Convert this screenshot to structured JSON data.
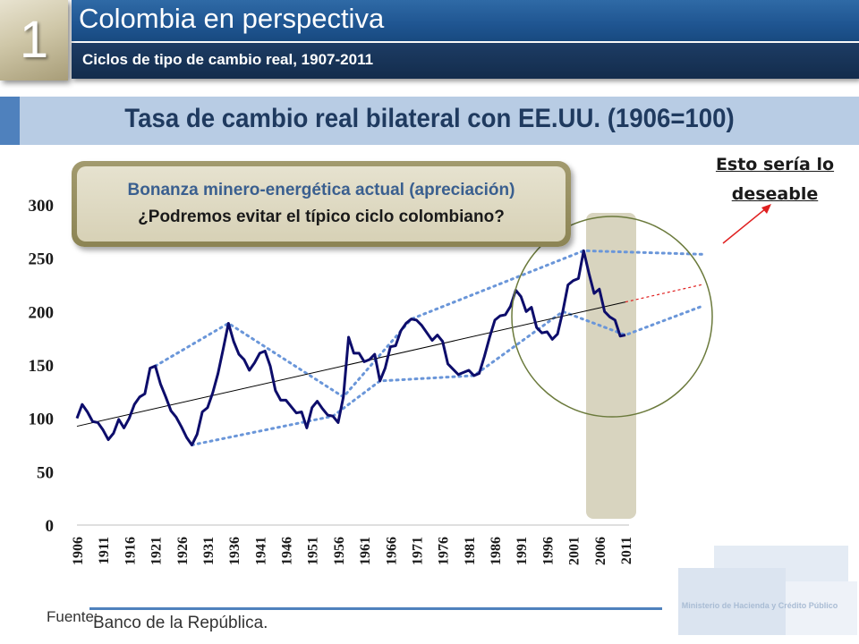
{
  "header": {
    "section_number": "1",
    "title": "Colombia en perspectiva",
    "subtitle": "Ciclos de tipo de cambio real, 1907-2011"
  },
  "band_title": "Tasa de cambio real bilateral con EE.UU. (1906=100)",
  "callout": {
    "line1": "Bonanza minero-energética actual (apreciación)",
    "line2": "¿Podremos evitar el típico ciclo colombiano?"
  },
  "annotation": "Esto sería lo deseable",
  "footer": {
    "label": "Fuente:",
    "source": "Banco de la República.",
    "ministry": "Ministerio de Hacienda y Crédito Público"
  },
  "colors": {
    "series": "#0d0d6b",
    "trend": "#000000",
    "envelope": "#6a96d9",
    "highlight_band": "#d8d4bf",
    "circle": "#6b7a3c",
    "arrow": "#e02020",
    "header_blue": "#1f5591",
    "band": "#b8cce4"
  },
  "chart_data": {
    "type": "line",
    "title": "Tasa de cambio real bilateral con EE.UU. (1906=100)",
    "xlabel": "",
    "ylabel": "",
    "ylim": [
      0,
      300
    ],
    "yticks": [
      0,
      50,
      100,
      150,
      200,
      250,
      300
    ],
    "xticks": [
      "1906",
      "1911",
      "1916",
      "1921",
      "1926",
      "1931",
      "1936",
      "1941",
      "1946",
      "1951",
      "1956",
      "1961",
      "1966",
      "1971",
      "1976",
      "1981",
      "1986",
      "1991",
      "1996",
      "2001",
      "2006",
      "2011"
    ],
    "grid": false,
    "series": [
      {
        "x": [
          1906,
          1907,
          1908,
          1909,
          1910,
          1911,
          1912,
          1913,
          1914,
          1915,
          1916,
          1917,
          1918,
          1919,
          1920,
          1921,
          1922,
          1923,
          1924,
          1925,
          1926,
          1927,
          1928,
          1929,
          1930,
          1931,
          1932,
          1933,
          1934,
          1935,
          1936,
          1937,
          1938,
          1939,
          1940,
          1941,
          1942,
          1943,
          1944,
          1945,
          1946,
          1947,
          1948,
          1949,
          1950,
          1951,
          1952,
          1953,
          1954,
          1955,
          1956,
          1957,
          1958,
          1959,
          1960,
          1961,
          1962,
          1963,
          1964,
          1965,
          1966,
          1967,
          1968,
          1969,
          1970,
          1971,
          1972,
          1973,
          1974,
          1975,
          1976,
          1977,
          1978,
          1979,
          1980,
          1981,
          1982,
          1983,
          1984,
          1985,
          1986,
          1987,
          1988,
          1989,
          1990,
          1991,
          1992,
          1993,
          1994,
          1995,
          1996,
          1997,
          1998,
          1999,
          2000,
          2001,
          2002,
          2003,
          2004,
          2005,
          2006,
          2007,
          2008,
          2009,
          2010,
          2011
        ],
        "values": [
          100,
          113,
          106,
          97,
          96,
          89,
          80,
          86,
          99,
          91,
          100,
          113,
          120,
          123,
          147,
          149,
          132,
          120,
          107,
          101,
          92,
          82,
          75,
          85,
          106,
          110,
          124,
          142,
          165,
          189,
          172,
          160,
          155,
          145,
          152,
          161,
          163,
          149,
          126,
          117,
          117,
          111,
          105,
          106,
          91,
          110,
          116,
          109,
          103,
          102,
          96,
          120,
          176,
          161,
          161,
          153,
          155,
          160,
          135,
          147,
          167,
          168,
          182,
          189,
          193,
          192,
          187,
          180,
          173,
          178,
          172,
          151,
          146,
          141,
          143,
          145,
          140,
          142,
          158,
          176,
          192,
          196,
          197,
          205,
          220,
          214,
          200,
          204,
          185,
          180,
          181,
          174,
          179,
          200,
          225,
          229,
          231,
          257,
          236,
          217,
          221,
          200,
          195,
          192,
          177,
          178
        ]
      }
    ],
    "annotations": [
      "Bonanza minero-energética actual (apreciación)",
      "¿Podremos evitar el típico ciclo colombiano?",
      "Esto sería lo deseable"
    ]
  }
}
